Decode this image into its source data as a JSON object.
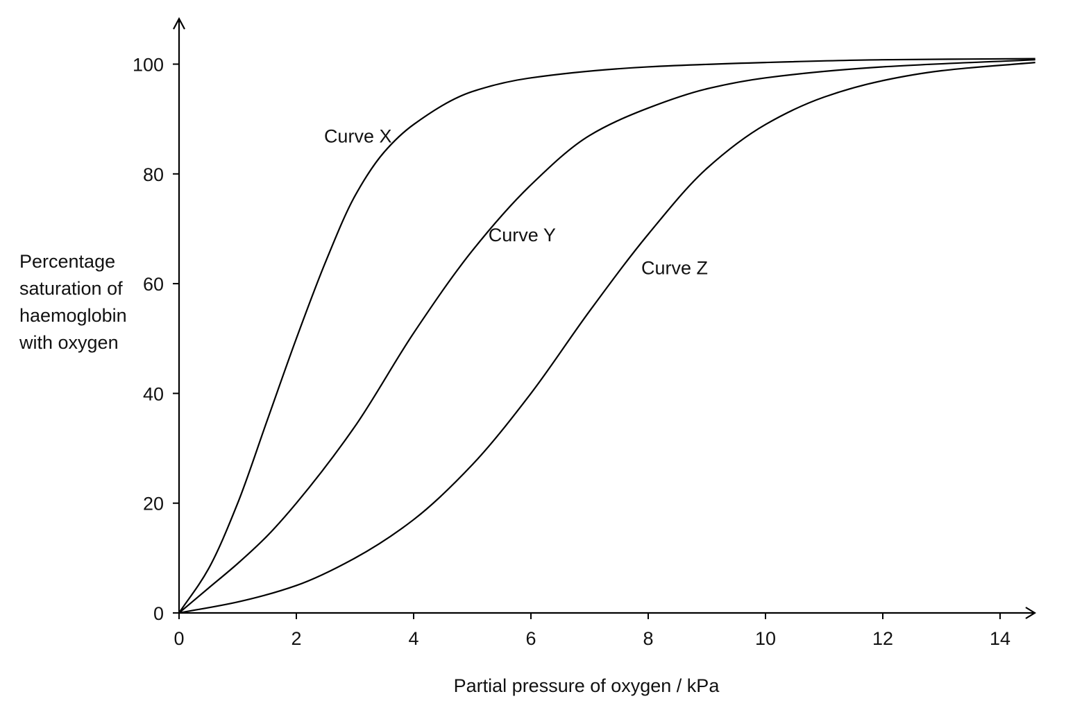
{
  "chart_data": {
    "type": "line",
    "title": "",
    "xlabel": "Partial pressure of oxygen / kPa",
    "ylabel_lines": [
      "Percentage",
      "saturation of",
      "haemoglobin",
      "with oxygen"
    ],
    "xlim": [
      0,
      14.6
    ],
    "ylim": [
      0,
      108
    ],
    "xticks": [
      0,
      2,
      4,
      6,
      8,
      10,
      12,
      14
    ],
    "yticks": [
      0,
      20,
      40,
      60,
      80,
      100
    ],
    "grid": false,
    "legend": "none",
    "series": [
      {
        "name": "Curve X",
        "x": [
          0,
          0.5,
          1,
          1.5,
          2,
          2.5,
          3,
          3.5,
          4,
          5,
          6,
          8,
          10,
          12,
          14.6
        ],
        "y": [
          0,
          8,
          20,
          35,
          50,
          64,
          76,
          84,
          89,
          95,
          97.5,
          99.5,
          100.3,
          100.8,
          101
        ]
      },
      {
        "name": "Curve Y",
        "x": [
          0,
          0.5,
          1,
          1.5,
          2,
          3,
          4,
          5,
          6,
          7,
          8,
          9,
          10,
          12,
          14.6
        ],
        "y": [
          0,
          4.5,
          9,
          14,
          20,
          34,
          51,
          66,
          78,
          87,
          92,
          95.5,
          97.5,
          99.5,
          100.8
        ]
      },
      {
        "name": "Curve Z",
        "x": [
          0,
          1,
          2,
          3,
          4,
          5,
          6,
          7,
          8,
          9,
          10,
          11,
          12,
          13,
          14.6
        ],
        "y": [
          0,
          2,
          5,
          10,
          17,
          27,
          40,
          55,
          69,
          81,
          89,
          94,
          97,
          98.8,
          100.3
        ]
      }
    ],
    "annotations": [
      {
        "text": "Curve X",
        "x": 3.05,
        "y": 87
      },
      {
        "text": "Curve Y",
        "x": 5.85,
        "y": 69
      },
      {
        "text": "Curve Z",
        "x": 8.45,
        "y": 63
      }
    ]
  }
}
